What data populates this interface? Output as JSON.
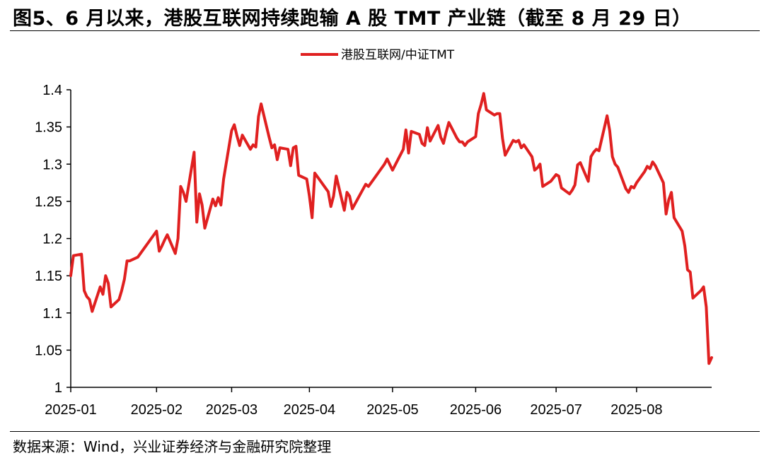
{
  "title": "图5、6 月以来，港股互联网持续跑输 A 股 TMT 产业链（截至 8 月 29 日）",
  "source": "数据来源：Wind，兴业证券经济与金融研究院整理",
  "colors": {
    "series": "#e02020",
    "axis": "#000000"
  },
  "chart_data": {
    "type": "line",
    "title": "",
    "xlabel": "",
    "ylabel": "",
    "ylim": [
      1,
      1.4
    ],
    "yticks": [
      1,
      1.05,
      1.1,
      1.15,
      1.2,
      1.25,
      1.3,
      1.35,
      1.4
    ],
    "ytick_labels": [
      "1",
      "1.05",
      "1.1",
      "1.15",
      "1.2",
      "1.25",
      "1.3",
      "1.35",
      "1.4"
    ],
    "xlim": [
      "2025-01-02",
      "2025-08-29"
    ],
    "xticks": [
      "2025-01-02",
      "2025-02-03",
      "2025-03-03",
      "2025-04-01",
      "2025-05-02",
      "2025-06-02",
      "2025-07-02",
      "2025-08-01"
    ],
    "xtick_labels": [
      "2025-01",
      "2025-02",
      "2025-03",
      "2025-04",
      "2025-05",
      "2025-06",
      "2025-07",
      "2025-08"
    ],
    "grid": false,
    "legend_position": "top-center",
    "series": [
      {
        "name": "港股互联网/中证TMT",
        "x": [
          "2025-01-02",
          "2025-01-03",
          "2025-01-06",
          "2025-01-07",
          "2025-01-08",
          "2025-01-09",
          "2025-01-10",
          "2025-01-13",
          "2025-01-14",
          "2025-01-15",
          "2025-01-16",
          "2025-01-17",
          "2025-01-20",
          "2025-01-21",
          "2025-01-22",
          "2025-01-23",
          "2025-01-24",
          "2025-01-27",
          "2025-02-03",
          "2025-02-04",
          "2025-02-05",
          "2025-02-06",
          "2025-02-07",
          "2025-02-10",
          "2025-02-11",
          "2025-02-12",
          "2025-02-13",
          "2025-02-14",
          "2025-02-17",
          "2025-02-18",
          "2025-02-19",
          "2025-02-20",
          "2025-02-21",
          "2025-02-24",
          "2025-02-25",
          "2025-02-26",
          "2025-02-27",
          "2025-02-28",
          "2025-03-03",
          "2025-03-04",
          "2025-03-05",
          "2025-03-06",
          "2025-03-07",
          "2025-03-10",
          "2025-03-11",
          "2025-03-12",
          "2025-03-13",
          "2025-03-14",
          "2025-03-17",
          "2025-03-18",
          "2025-03-19",
          "2025-03-20",
          "2025-03-21",
          "2025-03-24",
          "2025-03-25",
          "2025-03-26",
          "2025-03-27",
          "2025-03-28",
          "2025-03-31",
          "2025-04-01",
          "2025-04-02",
          "2025-04-03",
          "2025-04-07",
          "2025-04-08",
          "2025-04-09",
          "2025-04-10",
          "2025-04-11",
          "2025-04-14",
          "2025-04-15",
          "2025-04-16",
          "2025-04-17",
          "2025-04-22",
          "2025-04-23",
          "2025-04-24",
          "2025-04-25",
          "2025-04-28",
          "2025-04-29",
          "2025-04-30",
          "2025-05-02",
          "2025-05-06",
          "2025-05-07",
          "2025-05-08",
          "2025-05-09",
          "2025-05-12",
          "2025-05-13",
          "2025-05-14",
          "2025-05-15",
          "2025-05-16",
          "2025-05-19",
          "2025-05-20",
          "2025-05-21",
          "2025-05-22",
          "2025-05-23",
          "2025-05-26",
          "2025-05-27",
          "2025-05-28",
          "2025-05-29",
          "2025-05-30",
          "2025-06-02",
          "2025-06-03",
          "2025-06-04",
          "2025-06-05",
          "2025-06-06",
          "2025-06-09",
          "2025-06-10",
          "2025-06-11",
          "2025-06-12",
          "2025-06-13",
          "2025-06-16",
          "2025-06-17",
          "2025-06-18",
          "2025-06-19",
          "2025-06-20",
          "2025-06-23",
          "2025-06-24",
          "2025-06-25",
          "2025-06-26",
          "2025-06-27",
          "2025-06-30",
          "2025-07-02",
          "2025-07-03",
          "2025-07-04",
          "2025-07-07",
          "2025-07-08",
          "2025-07-09",
          "2025-07-10",
          "2025-07-11",
          "2025-07-14",
          "2025-07-15",
          "2025-07-16",
          "2025-07-17",
          "2025-07-18",
          "2025-07-21",
          "2025-07-22",
          "2025-07-23",
          "2025-07-24",
          "2025-07-25",
          "2025-07-28",
          "2025-07-29",
          "2025-07-30",
          "2025-07-31",
          "2025-08-01",
          "2025-08-04",
          "2025-08-05",
          "2025-08-06",
          "2025-08-07",
          "2025-08-08",
          "2025-08-11",
          "2025-08-12",
          "2025-08-13",
          "2025-08-14",
          "2025-08-15",
          "2025-08-18",
          "2025-08-19",
          "2025-08-20",
          "2025-08-21",
          "2025-08-22",
          "2025-08-25",
          "2025-08-26",
          "2025-08-27",
          "2025-08-28",
          "2025-08-29"
        ],
        "values": [
          1.15,
          1.177,
          1.179,
          1.13,
          1.122,
          1.118,
          1.102,
          1.135,
          1.125,
          1.15,
          1.14,
          1.108,
          1.118,
          1.13,
          1.145,
          1.17,
          1.17,
          1.175,
          1.21,
          1.183,
          1.19,
          1.198,
          1.205,
          1.18,
          1.2,
          1.27,
          1.262,
          1.25,
          1.316,
          1.222,
          1.26,
          1.245,
          1.214,
          1.253,
          1.244,
          1.255,
          1.245,
          1.28,
          1.345,
          1.353,
          1.338,
          1.325,
          1.339,
          1.32,
          1.326,
          1.323,
          1.364,
          1.381,
          1.336,
          1.322,
          1.326,
          1.306,
          1.322,
          1.32,
          1.298,
          1.322,
          1.324,
          1.285,
          1.28,
          1.257,
          1.228,
          1.288,
          1.268,
          1.263,
          1.243,
          1.257,
          1.284,
          1.238,
          1.262,
          1.257,
          1.24,
          1.273,
          1.27,
          1.275,
          1.28,
          1.295,
          1.3,
          1.307,
          1.292,
          1.32,
          1.346,
          1.315,
          1.344,
          1.34,
          1.328,
          1.325,
          1.349,
          1.331,
          1.352,
          1.336,
          1.328,
          1.343,
          1.356,
          1.335,
          1.33,
          1.33,
          1.325,
          1.33,
          1.337,
          1.368,
          1.38,
          1.395,
          1.373,
          1.366,
          1.368,
          1.368,
          1.335,
          1.312,
          1.332,
          1.33,
          1.332,
          1.322,
          1.326,
          1.31,
          1.292,
          1.295,
          1.3,
          1.27,
          1.277,
          1.286,
          1.284,
          1.268,
          1.26,
          1.265,
          1.272,
          1.299,
          1.302,
          1.277,
          1.31,
          1.316,
          1.32,
          1.318,
          1.365,
          1.345,
          1.31,
          1.3,
          1.296,
          1.267,
          1.262,
          1.27,
          1.268,
          1.275,
          1.29,
          1.297,
          1.294,
          1.303,
          1.298,
          1.275,
          1.233,
          1.252,
          1.262,
          1.228,
          1.21,
          1.19,
          1.158,
          1.155,
          1.12,
          1.13,
          1.135,
          1.108,
          1.032,
          1.04
        ]
      }
    ]
  }
}
